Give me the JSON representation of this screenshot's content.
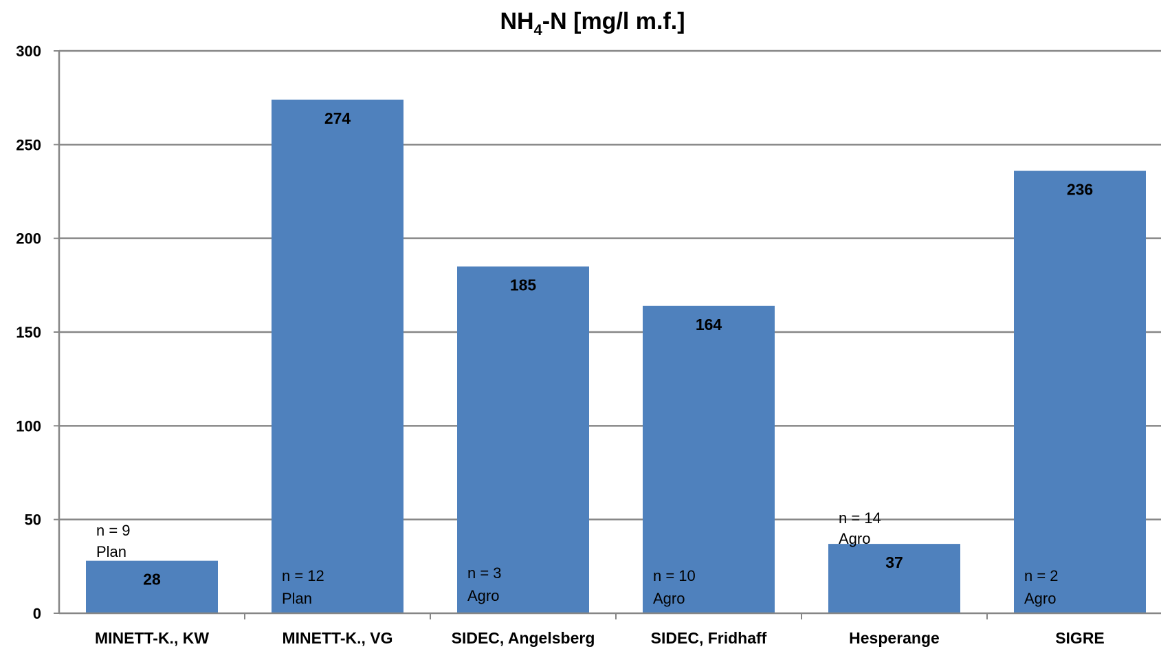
{
  "chart_data": {
    "type": "bar",
    "title": "NH",
    "title_subscript": "4",
    "title_rest": "-N [mg/l m.f.]",
    "categories": [
      "MINETT-K., KW",
      "MINETT-K., VG",
      "SIDEC, Angelsberg",
      "SIDEC, Fridhaff",
      "Hesperange",
      "SIGRE"
    ],
    "values": [
      28,
      274,
      185,
      164,
      37,
      236
    ],
    "annotations": [
      {
        "n": "n = 9",
        "type": "Plan"
      },
      {
        "n": "n = 12",
        "type": "Plan"
      },
      {
        "n": "n = 3",
        "type": "Agro"
      },
      {
        "n": "n = 10",
        "type": "Agro"
      },
      {
        "n": "n = 14",
        "type": "Agro"
      },
      {
        "n": "n = 2",
        "type": "Agro"
      }
    ],
    "ylim": [
      0,
      300
    ],
    "yticks": [
      "0",
      "50",
      "100",
      "150",
      "200",
      "250",
      "300"
    ],
    "xlabel": "",
    "ylabel": "",
    "grid": true,
    "bar_color": "#4f81bd",
    "grid_color": "#868686"
  }
}
